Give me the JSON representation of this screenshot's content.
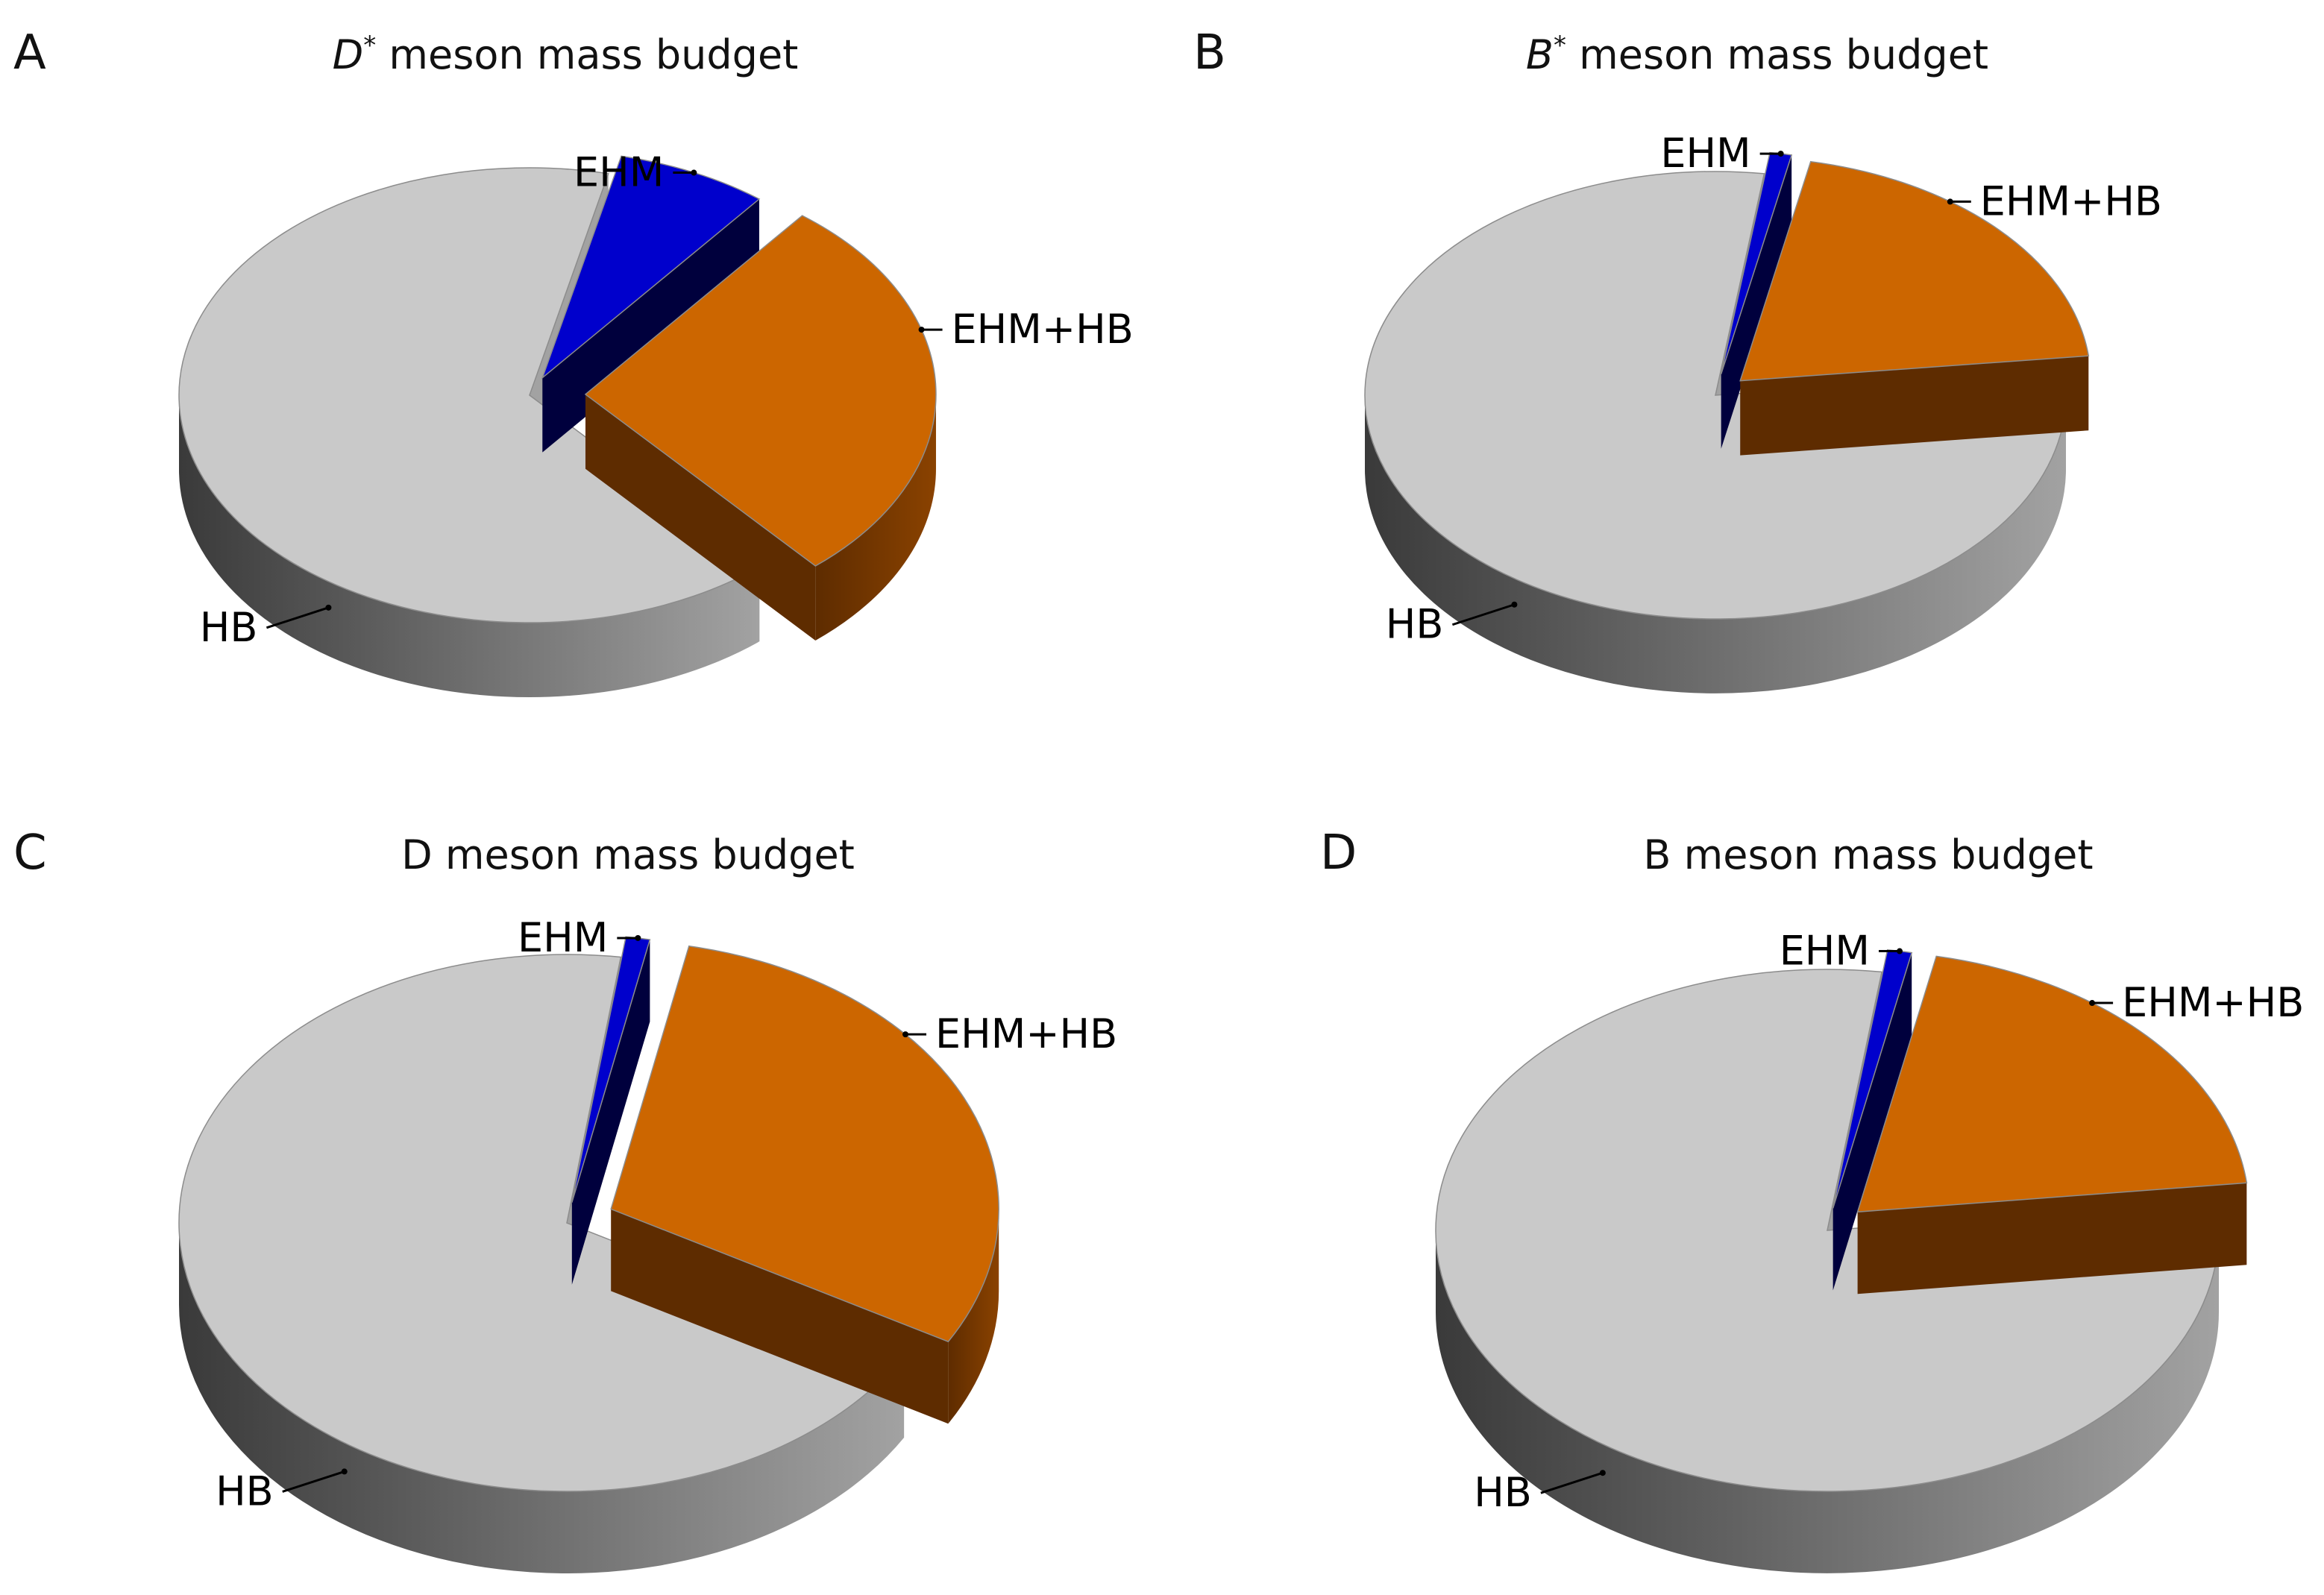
{
  "colors": {
    "HB_top": "#c9c9c9",
    "HB_side_light": "#a2a2a2",
    "HB_side_dark": "#3a3a3a",
    "EHM_top": "#0000cc",
    "EHM_side": "#00003d",
    "EHM_HB_top": "#cc6600",
    "EHM_HB_side": "#5e2c00",
    "EHM_HB_side_light": "#8a4200",
    "text": "#000000"
  },
  "chart_data": [
    {
      "type": "pie",
      "panel": "A",
      "title": "D* meson mass budget",
      "title_italic_symbol": "D",
      "title_superscript": "*",
      "title_rest": " meson mass budget",
      "slices": [
        {
          "label": "EHM",
          "value": 7
        },
        {
          "label": "EHM+HB",
          "value": 28
        },
        {
          "label": "HB",
          "value": 65
        }
      ]
    },
    {
      "type": "pie",
      "panel": "B",
      "title": "B* meson mass budget",
      "title_italic_symbol": "B",
      "title_superscript": "*",
      "title_rest": " meson mass budget",
      "slices": [
        {
          "label": "EHM",
          "value": 1
        },
        {
          "label": "EHM+HB",
          "value": 20
        },
        {
          "label": "HB",
          "value": 79
        }
      ]
    },
    {
      "type": "pie",
      "panel": "C",
      "title": "D meson mass budget",
      "slices": [
        {
          "label": "EHM",
          "value": 1
        },
        {
          "label": "EHM+HB",
          "value": 30
        },
        {
          "label": "HB",
          "value": 69
        }
      ]
    },
    {
      "type": "pie",
      "panel": "D",
      "title": "B meson mass budget",
      "slices": [
        {
          "label": "EHM",
          "value": 1
        },
        {
          "label": "EHM+HB",
          "value": 20
        },
        {
          "label": "HB",
          "value": 79
        }
      ]
    }
  ]
}
